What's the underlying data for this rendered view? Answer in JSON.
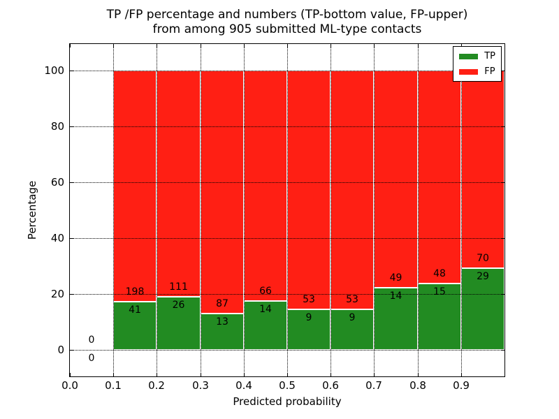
{
  "figure": {
    "title_line1": "TP /FP percentage and numbers (TP-bottom value, FP-upper)",
    "title_line2": "from among 905 submitted ML-type contacts"
  },
  "chart_data": {
    "type": "bar",
    "stacked": true,
    "stack_total_pct": 100,
    "title": "TP /FP percentage and numbers (TP-bottom value, FP-upper)\nfrom among 905 submitted ML-type contacts",
    "xlabel": "Predicted probability",
    "ylabel": "Percentage",
    "xlim": [
      0.0,
      1.0
    ],
    "ylim_display": [
      -9.5,
      109.5
    ],
    "bin_edges": [
      0.0,
      0.1,
      0.2,
      0.3,
      0.4,
      0.5,
      0.6,
      0.7,
      0.8,
      0.9,
      1.0
    ],
    "xtick_labels": [
      "0.0",
      "0.1",
      "0.2",
      "0.3",
      "0.4",
      "0.5",
      "0.6",
      "0.7",
      "0.8",
      "0.9"
    ],
    "ytick_labels": [
      "0",
      "20",
      "40",
      "60",
      "80",
      "100"
    ],
    "grid": true,
    "grid_linestyle": "dotted",
    "legend_position": "upper right",
    "series": [
      {
        "name": "TP",
        "color": "#228B22",
        "counts": [
          0,
          41,
          26,
          13,
          14,
          9,
          9,
          14,
          15,
          29
        ]
      },
      {
        "name": "FP",
        "color": "#FF1F14",
        "counts": [
          0,
          198,
          111,
          87,
          66,
          53,
          53,
          49,
          48,
          70
        ]
      }
    ],
    "percent_tp_per_bin": [
      0,
      17.15,
      18.98,
      13.0,
      17.5,
      14.52,
      14.52,
      22.22,
      23.81,
      29.29
    ],
    "annotation_rule": "FP count above TP/FP boundary, TP count below",
    "total_contacts": 905,
    "colors": {
      "tp": "#228B22",
      "fp": "#FF1F14",
      "bar_edge": "#FFFFFF",
      "grid": "#000000"
    }
  }
}
